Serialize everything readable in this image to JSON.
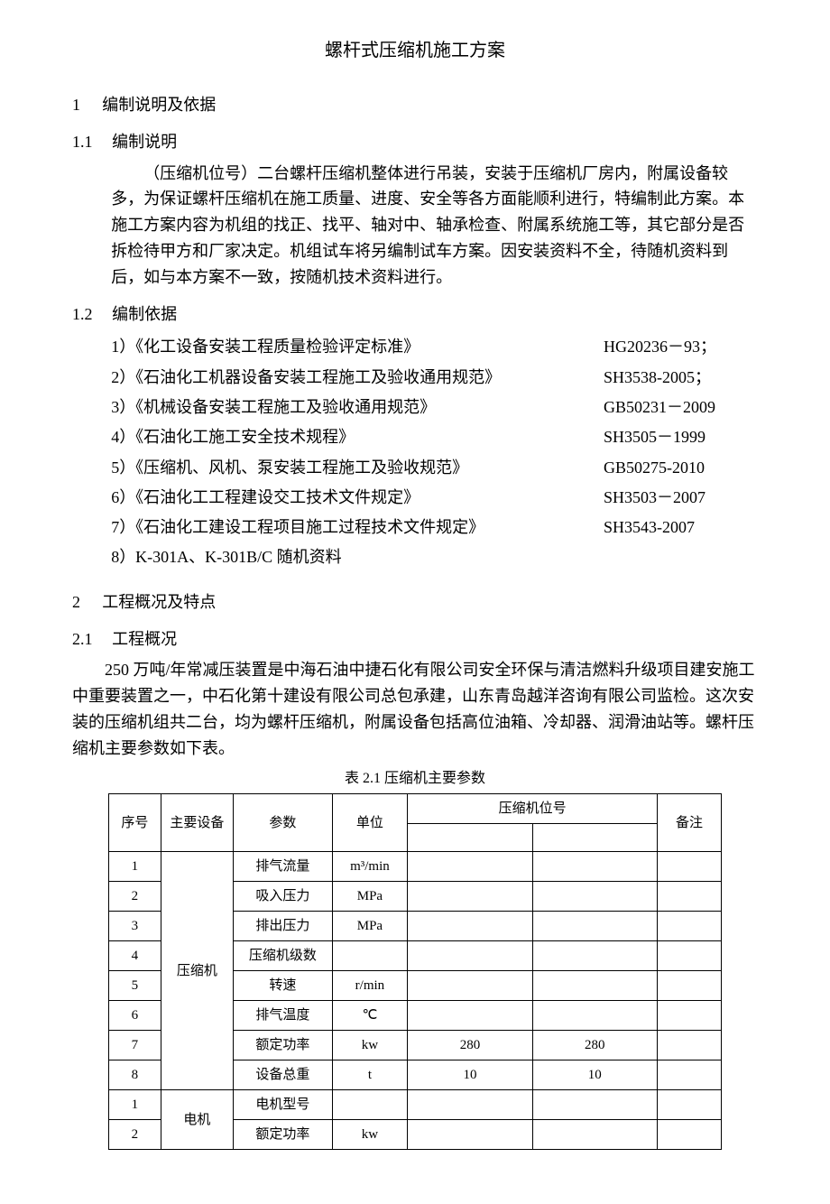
{
  "title": "螺杆式压缩机施工方案",
  "sec1": {
    "num": "1",
    "label": "编制说明及依据",
    "s11": {
      "num": "1.1",
      "label": "编制说明"
    },
    "body11": "（压缩机位号）二台螺杆压缩机整体进行吊装，安装于压缩机厂房内，附属设备较多，为保证螺杆压缩机在施工质量、进度、安全等各方面能顺利进行，特编制此方案。本施工方案内容为机组的找正、找平、轴对中、轴承检查、附属系统施工等，其它部分是否拆检待甲方和厂家决定。机组试车将另编制试车方案。因安装资料不全，待随机资料到后，如与本方案不一致，按随机技术资料进行。",
    "s12": {
      "num": "1.2",
      "label": "编制依据"
    },
    "refs": [
      {
        "name": "1）《化工设备安装工程质量检验评定标准》",
        "code": "HG20236－93；"
      },
      {
        "name": "2）《石油化工机器设备安装工程施工及验收通用规范》",
        "code": "SH3538-2005；"
      },
      {
        "name": "3）《机械设备安装工程施工及验收通用规范》",
        "code": "GB50231－2009"
      },
      {
        "name": "4）《石油化工施工安全技术规程》",
        "code": "SH3505－1999"
      },
      {
        "name": "5）《压缩机、风机、泵安装工程施工及验收规范》",
        "code": "GB50275-2010"
      },
      {
        "name": "6）《石油化工工程建设交工技术文件规定》",
        "code": "SH3503－2007"
      },
      {
        "name": "7）《石油化工建设工程项目施工过程技术文件规定》",
        "code": "SH3543-2007"
      },
      {
        "name": "8）K-301A、K-301B/C 随机资料",
        "code": ""
      }
    ]
  },
  "sec2": {
    "num": "2",
    "label": "工程概况及特点",
    "s21": {
      "num": "2.1",
      "label": "工程概况"
    },
    "body21": "250 万吨/年常减压装置是中海石油中捷石化有限公司安全环保与清洁燃料升级项目建安施工中重要装置之一，中石化第十建设有限公司总包承建，山东青岛越洋咨询有限公司监检。这次安装的压缩机组共二台，均为螺杆压缩机，附属设备包括高位油箱、冷却器、润滑油站等。螺杆压缩机主要参数如下表。"
  },
  "table": {
    "caption": "表 2.1 压缩机主要参数",
    "header": {
      "idx": "序号",
      "equip": "主要设备",
      "param": "参数",
      "unit": "单位",
      "tag_group": "压缩机位号",
      "note": "备注"
    },
    "groups": [
      {
        "equip": "压缩机",
        "rows": [
          {
            "idx": "1",
            "param": "排气流量",
            "unit": "m³/min",
            "v1": "",
            "v2": "",
            "note": ""
          },
          {
            "idx": "2",
            "param": "吸入压力",
            "unit": "MPa",
            "v1": "",
            "v2": "",
            "note": ""
          },
          {
            "idx": "3",
            "param": "排出压力",
            "unit": "MPa",
            "v1": "",
            "v2": "",
            "note": ""
          },
          {
            "idx": "4",
            "param": "压缩机级数",
            "unit": "",
            "v1": "",
            "v2": "",
            "note": ""
          },
          {
            "idx": "5",
            "param": "转速",
            "unit": "r/min",
            "v1": "",
            "v2": "",
            "note": ""
          },
          {
            "idx": "6",
            "param": "排气温度",
            "unit": "℃",
            "v1": "",
            "v2": "",
            "note": ""
          },
          {
            "idx": "7",
            "param": "额定功率",
            "unit": "kw",
            "v1": "280",
            "v2": "280",
            "note": ""
          },
          {
            "idx": "8",
            "param": "设备总重",
            "unit": "t",
            "v1": "10",
            "v2": "10",
            "note": ""
          }
        ]
      },
      {
        "equip": "电机",
        "rows": [
          {
            "idx": "1",
            "param": "电机型号",
            "unit": "",
            "v1": "",
            "v2": "",
            "note": ""
          },
          {
            "idx": "2",
            "param": "额定功率",
            "unit": "kw",
            "v1": "",
            "v2": "",
            "note": ""
          }
        ]
      }
    ]
  }
}
